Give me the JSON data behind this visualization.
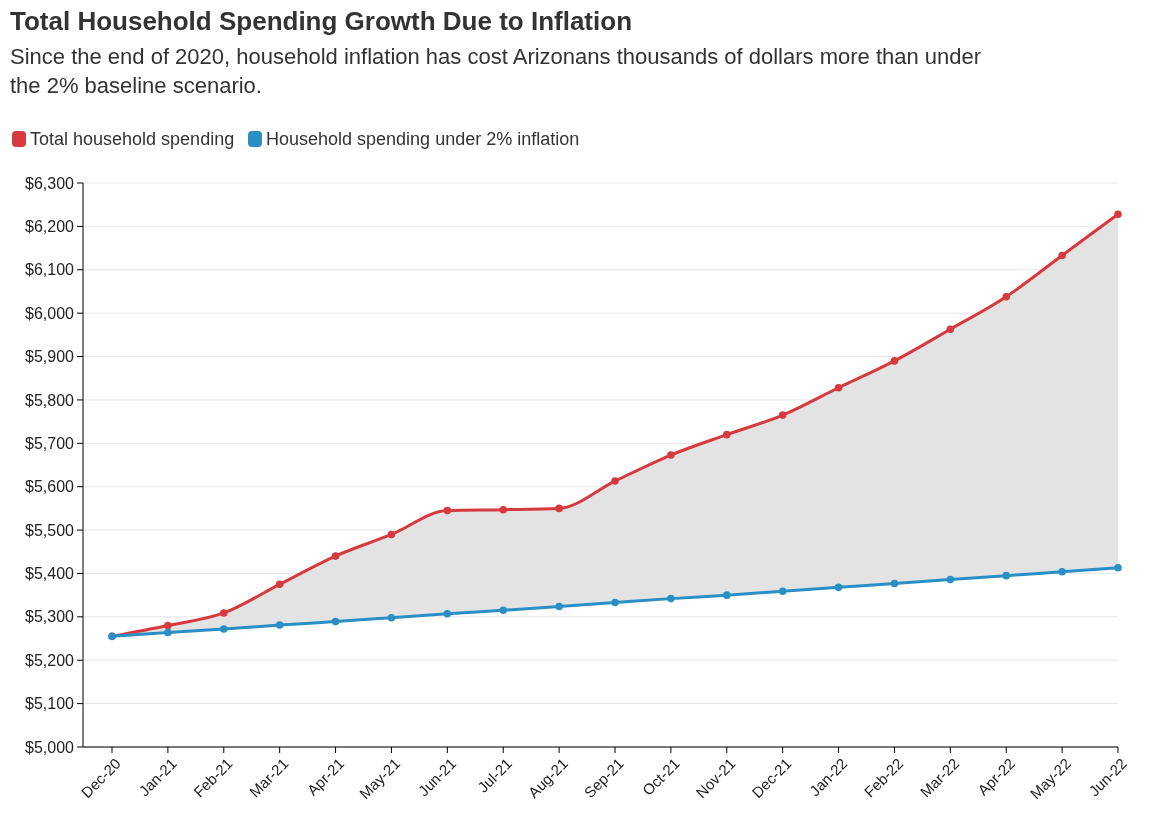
{
  "chart_data": {
    "type": "line",
    "title": "Total Household Spending Growth Due to Inflation",
    "subtitle": "Since the end of 2020, household inflation has cost Arizonans thousands of dollars more than under the 2% baseline scenario.",
    "categories": [
      "Dec-20",
      "Jan-21",
      "Feb-21",
      "Mar-21",
      "Apr-21",
      "May-21",
      "Jun-21",
      "Jul-21",
      "Aug-21",
      "Sep-21",
      "Oct-21",
      "Nov-21",
      "Dec-21",
      "Jan-22",
      "Feb-22",
      "Mar-22",
      "Apr-22",
      "May-22",
      "Jun-22"
    ],
    "series": [
      {
        "name": "Total household spending",
        "color": "#d63a3f",
        "values": [
          5255,
          5280,
          5309,
          5375,
          5440,
          5490,
          5545,
          5547,
          5550,
          5613,
          5673,
          5720,
          5765,
          5828,
          5890,
          5963,
          6038,
          6133,
          6228
        ],
        "lower": [
          5255,
          5264,
          5272,
          5281,
          5289,
          5298,
          5307,
          5315,
          5324,
          5333,
          5342,
          5350,
          5359,
          5368,
          5377,
          5386,
          5395,
          5404,
          5413
        ],
        "upper": [
          5255,
          5280,
          5309,
          5375,
          5440,
          5490,
          5545,
          5547,
          5550,
          5613,
          5673,
          5720,
          5765,
          5828,
          5890,
          5963,
          6038,
          6133,
          6228
        ]
      },
      {
        "name": "Household spending under 2% inflation",
        "color": "#2a8fc4",
        "values": [
          5255,
          5264,
          5272,
          5281,
          5289,
          5298,
          5307,
          5315,
          5324,
          5333,
          5342,
          5350,
          5359,
          5368,
          5377,
          5386,
          5395,
          5404,
          5413
        ]
      }
    ],
    "ylim": [
      5000,
      6300
    ],
    "yticks": [
      {
        "value": 5000,
        "label": "$5,000"
      },
      {
        "value": 5100,
        "label": "$5,100"
      },
      {
        "value": 5200,
        "label": "$5,200"
      },
      {
        "value": 5300,
        "label": "$5,300"
      },
      {
        "value": 5400,
        "label": "$5,400"
      },
      {
        "value": 5500,
        "label": "$5,500"
      },
      {
        "value": 5600,
        "label": "$5,600"
      },
      {
        "value": 5700,
        "label": "$5,700"
      },
      {
        "value": 5800,
        "label": "$5,800"
      },
      {
        "value": 5900,
        "label": "$5,900"
      },
      {
        "value": 6000,
        "label": "$6,000"
      },
      {
        "value": 6100,
        "label": "$6,100"
      },
      {
        "value": 6200,
        "label": "$6,200"
      },
      {
        "value": 6300,
        "label": "$6,300"
      }
    ],
    "grid": "y",
    "legend": "top left",
    "marker": "circle",
    "line_style": "solid"
  }
}
